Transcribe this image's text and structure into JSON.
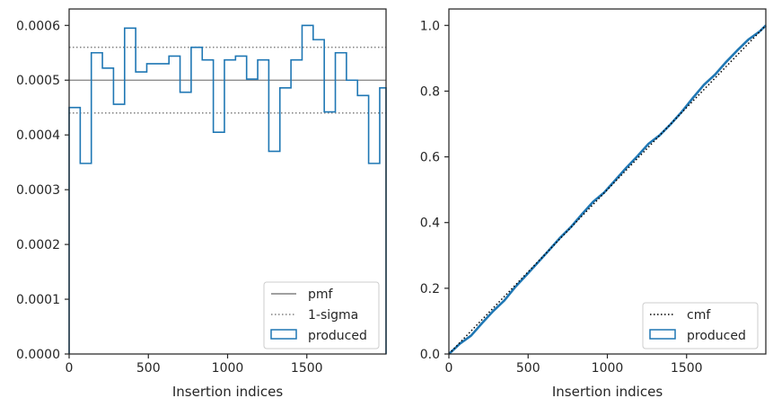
{
  "colors": {
    "produced": "#1f77b4",
    "pmf": "#808080",
    "sigma": "#808080",
    "cmf": "#000000",
    "axes": "#262626"
  },
  "chart_data": [
    {
      "type": "histogram-step",
      "xlabel": "Insertion indices",
      "ylabel": "",
      "xlim": [
        0,
        2000
      ],
      "ylim": [
        0,
        0.00063
      ],
      "xticks": [
        0,
        500,
        1000,
        1500
      ],
      "xtick_labels": [
        "0",
        "500",
        "1000",
        "1500"
      ],
      "yticks": [
        0,
        0.0001,
        0.0002,
        0.0003,
        0.0004,
        0.0005,
        0.0006
      ],
      "ytick_labels": [
        "0.0000",
        "0.0001",
        "0.0002",
        "0.0003",
        "0.0004",
        "0.0005",
        "0.0006"
      ],
      "bin_edges": [
        0,
        70,
        140,
        210,
        280,
        350,
        420,
        490,
        560,
        630,
        700,
        770,
        840,
        910,
        980,
        1050,
        1120,
        1190,
        1260,
        1330,
        1400,
        1470,
        1540,
        1610,
        1680,
        1750,
        1820,
        1890,
        1960,
        2000
      ],
      "series": [
        {
          "name": "produced",
          "kind": "step",
          "values": [
            0.00045,
            0.000348,
            0.00055,
            0.000522,
            0.000456,
            0.000595,
            0.000515,
            0.00053,
            0.00053,
            0.000544,
            0.000478,
            0.00056,
            0.000537,
            0.000405,
            0.000537,
            0.000544,
            0.000502,
            0.000537,
            0.00037,
            0.000486,
            0.000537,
            0.0006,
            0.000574,
            0.000442,
            0.00055,
            0.0005,
            0.000472,
            0.000348,
            0.000486
          ]
        },
        {
          "name": "pmf",
          "kind": "hline",
          "value": 0.0005
        },
        {
          "name": "1-sigma",
          "kind": "hline-pair",
          "values": [
            0.00044,
            0.00056
          ]
        }
      ],
      "legend": {
        "placement": "lower-right",
        "entries": [
          {
            "label": "pmf",
            "style": "solid"
          },
          {
            "label": "1-sigma",
            "style": "dotted"
          },
          {
            "label": "produced",
            "style": "patch"
          }
        ]
      },
      "grid": false
    },
    {
      "type": "line",
      "xlabel": "Insertion indices",
      "ylabel": "",
      "xlim": [
        0,
        2000
      ],
      "ylim": [
        0,
        1.05
      ],
      "xticks": [
        0,
        500,
        1000,
        1500
      ],
      "xtick_labels": [
        "0",
        "500",
        "1000",
        "1500"
      ],
      "yticks": [
        0,
        0.2,
        0.4,
        0.6,
        0.8,
        1.0
      ],
      "ytick_labels": [
        "0.0",
        "0.2",
        "0.4",
        "0.6",
        "0.8",
        "1.0"
      ],
      "series": [
        {
          "name": "cmf",
          "kind": "line",
          "style": "dotted",
          "x": [
            0,
            2000
          ],
          "y": [
            0,
            1.0
          ]
        },
        {
          "name": "produced",
          "kind": "line",
          "x": [
            0,
            70,
            140,
            210,
            280,
            350,
            420,
            490,
            560,
            630,
            700,
            770,
            840,
            910,
            980,
            1050,
            1120,
            1190,
            1260,
            1330,
            1400,
            1470,
            1540,
            1610,
            1680,
            1750,
            1820,
            1890,
            1960,
            2000
          ],
          "y": [
            0,
            0.0315,
            0.0559,
            0.0944,
            0.1309,
            0.1628,
            0.2045,
            0.2405,
            0.2776,
            0.3147,
            0.3528,
            0.3863,
            0.4255,
            0.4631,
            0.4914,
            0.529,
            0.5671,
            0.6022,
            0.6398,
            0.6657,
            0.6997,
            0.7373,
            0.7793,
            0.8195,
            0.8504,
            0.8889,
            0.9239,
            0.9569,
            0.9813,
            1.0
          ]
        }
      ],
      "legend": {
        "placement": "lower-right",
        "entries": [
          {
            "label": "cmf",
            "style": "dotted"
          },
          {
            "label": "produced",
            "style": "patch"
          }
        ]
      },
      "grid": false
    }
  ]
}
